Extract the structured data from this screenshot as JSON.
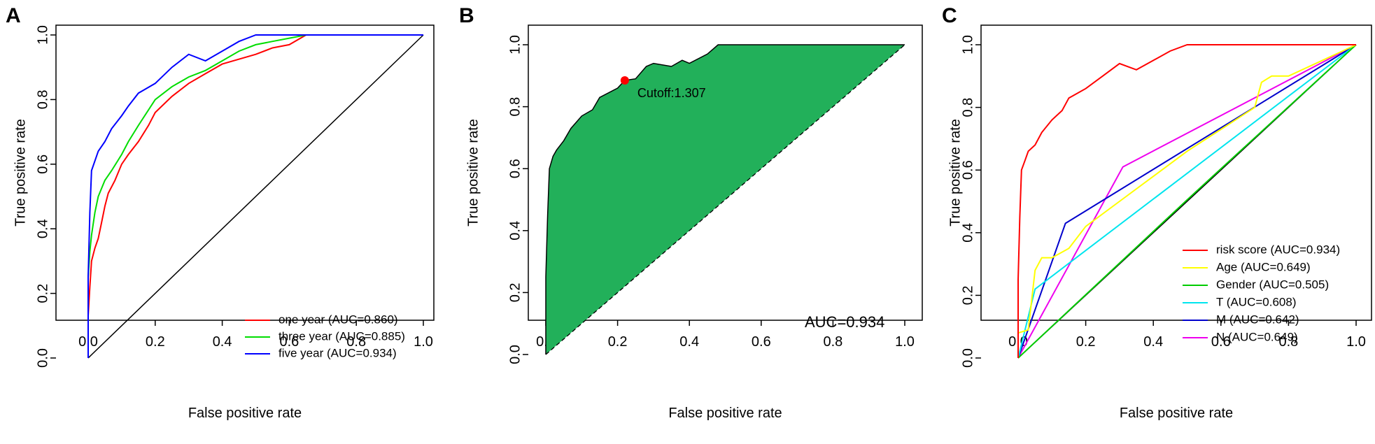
{
  "chart_data": [
    {
      "type": "line",
      "panel": "A",
      "xlabel": "False positive rate",
      "ylabel": "True positive rate",
      "xlim": [
        0,
        1
      ],
      "ylim": [
        0,
        1
      ],
      "xticks": [
        "0.0",
        "0.2",
        "0.4",
        "0.6",
        "0.8",
        "1.0"
      ],
      "yticks": [
        "0.0",
        "0.2",
        "0.4",
        "0.6",
        "0.8",
        "1.0"
      ],
      "legend_position": "bottom-right",
      "reference_line": [
        [
          0,
          0
        ],
        [
          1,
          1
        ]
      ],
      "series": [
        {
          "name": "one year (AUC=0.860)",
          "color": "#ff0000",
          "points": [
            [
              0,
              0
            ],
            [
              0,
              0.13
            ],
            [
              0.005,
              0.22
            ],
            [
              0.01,
              0.3
            ],
            [
              0.02,
              0.34
            ],
            [
              0.03,
              0.37
            ],
            [
              0.04,
              0.42
            ],
            [
              0.05,
              0.47
            ],
            [
              0.06,
              0.51
            ],
            [
              0.08,
              0.55
            ],
            [
              0.1,
              0.6
            ],
            [
              0.12,
              0.63
            ],
            [
              0.15,
              0.67
            ],
            [
              0.18,
              0.72
            ],
            [
              0.2,
              0.76
            ],
            [
              0.25,
              0.81
            ],
            [
              0.3,
              0.85
            ],
            [
              0.35,
              0.88
            ],
            [
              0.4,
              0.91
            ],
            [
              0.5,
              0.94
            ],
            [
              0.55,
              0.96
            ],
            [
              0.6,
              0.97
            ],
            [
              0.65,
              1.0
            ],
            [
              0.7,
              1.0
            ],
            [
              0.8,
              1.0
            ],
            [
              1,
              1
            ]
          ]
        },
        {
          "name": "three year (AUC=0.885)",
          "color": "#00dd00",
          "points": [
            [
              0,
              0
            ],
            [
              0,
              0.25
            ],
            [
              0.005,
              0.33
            ],
            [
              0.01,
              0.38
            ],
            [
              0.02,
              0.45
            ],
            [
              0.03,
              0.5
            ],
            [
              0.05,
              0.55
            ],
            [
              0.07,
              0.58
            ],
            [
              0.1,
              0.63
            ],
            [
              0.12,
              0.67
            ],
            [
              0.15,
              0.72
            ],
            [
              0.2,
              0.8
            ],
            [
              0.25,
              0.84
            ],
            [
              0.3,
              0.87
            ],
            [
              0.35,
              0.89
            ],
            [
              0.4,
              0.92
            ],
            [
              0.45,
              0.95
            ],
            [
              0.5,
              0.97
            ],
            [
              0.55,
              0.98
            ],
            [
              0.6,
              0.99
            ],
            [
              0.65,
              1.0
            ],
            [
              0.8,
              1.0
            ],
            [
              1,
              1
            ]
          ]
        },
        {
          "name": "five year (AUC=0.934)",
          "color": "#0000ff",
          "points": [
            [
              0,
              0
            ],
            [
              0,
              0.25
            ],
            [
              0.005,
              0.45
            ],
            [
              0.01,
              0.58
            ],
            [
              0.02,
              0.61
            ],
            [
              0.03,
              0.64
            ],
            [
              0.05,
              0.67
            ],
            [
              0.07,
              0.71
            ],
            [
              0.1,
              0.75
            ],
            [
              0.12,
              0.78
            ],
            [
              0.15,
              0.82
            ],
            [
              0.2,
              0.85
            ],
            [
              0.25,
              0.9
            ],
            [
              0.3,
              0.94
            ],
            [
              0.35,
              0.92
            ],
            [
              0.4,
              0.95
            ],
            [
              0.45,
              0.98
            ],
            [
              0.5,
              1.0
            ],
            [
              0.6,
              1.0
            ],
            [
              0.7,
              1.0
            ],
            [
              0.8,
              1.0
            ],
            [
              0.9,
              1.0
            ],
            [
              1,
              1
            ]
          ]
        }
      ]
    },
    {
      "type": "area",
      "panel": "B",
      "xlabel": "False positive rate",
      "ylabel": "True positive rate",
      "xlim": [
        0,
        1
      ],
      "ylim": [
        0,
        1
      ],
      "xticks": [
        "0.0",
        "0.2",
        "0.4",
        "0.6",
        "0.8",
        "1.0"
      ],
      "yticks": [
        "0.0",
        "0.2",
        "0.4",
        "0.6",
        "0.8",
        "1.0"
      ],
      "fill_color": "#22b05a",
      "cutoff_point": {
        "x": 0.22,
        "y": 0.885,
        "label": "Cutoff:1.307",
        "color": "#ff0000"
      },
      "auc_text": "AUC=0.934",
      "series": [
        {
          "name": "",
          "points": [
            [
              0,
              0
            ],
            [
              0,
              0.25
            ],
            [
              0.005,
              0.45
            ],
            [
              0.01,
              0.6
            ],
            [
              0.02,
              0.64
            ],
            [
              0.03,
              0.66
            ],
            [
              0.05,
              0.69
            ],
            [
              0.07,
              0.73
            ],
            [
              0.1,
              0.77
            ],
            [
              0.13,
              0.79
            ],
            [
              0.15,
              0.83
            ],
            [
              0.2,
              0.86
            ],
            [
              0.22,
              0.885
            ],
            [
              0.25,
              0.89
            ],
            [
              0.28,
              0.93
            ],
            [
              0.3,
              0.94
            ],
            [
              0.35,
              0.93
            ],
            [
              0.38,
              0.95
            ],
            [
              0.4,
              0.94
            ],
            [
              0.45,
              0.97
            ],
            [
              0.48,
              1.0
            ],
            [
              0.5,
              1.0
            ],
            [
              0.6,
              1.0
            ],
            [
              0.7,
              1.0
            ],
            [
              0.8,
              1.0
            ],
            [
              0.9,
              1.0
            ],
            [
              1,
              1
            ]
          ]
        }
      ]
    },
    {
      "type": "line",
      "panel": "C",
      "xlabel": "False positive rate",
      "ylabel": "True positive rate",
      "xlim": [
        0,
        1
      ],
      "ylim": [
        0,
        1
      ],
      "xticks": [
        "0.0",
        "0.2",
        "0.4",
        "0.6",
        "0.8",
        "1.0"
      ],
      "yticks": [
        "0.0",
        "0.2",
        "0.4",
        "0.6",
        "0.8",
        "1.0"
      ],
      "legend_position": "bottom-right",
      "reference_line": [
        [
          0,
          0
        ],
        [
          1,
          1
        ]
      ],
      "series": [
        {
          "name": "risk score (AUC=0.934)",
          "color": "#ff0000",
          "points": [
            [
              0,
              0
            ],
            [
              0,
              0.25
            ],
            [
              0.005,
              0.45
            ],
            [
              0.01,
              0.6
            ],
            [
              0.02,
              0.63
            ],
            [
              0.03,
              0.66
            ],
            [
              0.05,
              0.68
            ],
            [
              0.07,
              0.72
            ],
            [
              0.1,
              0.76
            ],
            [
              0.13,
              0.79
            ],
            [
              0.15,
              0.83
            ],
            [
              0.2,
              0.86
            ],
            [
              0.25,
              0.9
            ],
            [
              0.3,
              0.94
            ],
            [
              0.35,
              0.92
            ],
            [
              0.4,
              0.95
            ],
            [
              0.45,
              0.98
            ],
            [
              0.5,
              1.0
            ],
            [
              0.6,
              1.0
            ],
            [
              0.7,
              1.0
            ],
            [
              0.8,
              1.0
            ],
            [
              0.9,
              1.0
            ],
            [
              1,
              1
            ]
          ]
        },
        {
          "name": "Age (AUC=0.649)",
          "color": "#ffff00",
          "points": [
            [
              0,
              0
            ],
            [
              0,
              0.08
            ],
            [
              0.03,
              0.09
            ],
            [
              0.05,
              0.28
            ],
            [
              0.07,
              0.32
            ],
            [
              0.1,
              0.32
            ],
            [
              0.15,
              0.35
            ],
            [
              0.2,
              0.42
            ],
            [
              0.3,
              0.5
            ],
            [
              0.4,
              0.58
            ],
            [
              0.5,
              0.66
            ],
            [
              0.6,
              0.73
            ],
            [
              0.7,
              0.8
            ],
            [
              0.72,
              0.88
            ],
            [
              0.75,
              0.9
            ],
            [
              0.8,
              0.9
            ],
            [
              1,
              1
            ]
          ]
        },
        {
          "name": "Gender (AUC=0.505)",
          "color": "#00cc00",
          "points": [
            [
              0,
              0
            ],
            [
              0.5,
              0.505
            ],
            [
              1,
              1
            ]
          ]
        },
        {
          "name": "T (AUC=0.608)",
          "color": "#00e5ee",
          "points": [
            [
              0,
              0
            ],
            [
              0.05,
              0.22
            ],
            [
              1,
              1
            ]
          ]
        },
        {
          "name": "M (AUC=0.642)",
          "color": "#0000cc",
          "points": [
            [
              0,
              0
            ],
            [
              0.14,
              0.43
            ],
            [
              1,
              1
            ]
          ]
        },
        {
          "name": "N (AUC=0.649)",
          "color": "#ee00ee",
          "points": [
            [
              0,
              0
            ],
            [
              0.31,
              0.61
            ],
            [
              1,
              1
            ]
          ]
        }
      ]
    }
  ],
  "panels": {
    "A": {
      "letter": "A"
    },
    "B": {
      "letter": "B"
    },
    "C": {
      "letter": "C"
    }
  }
}
